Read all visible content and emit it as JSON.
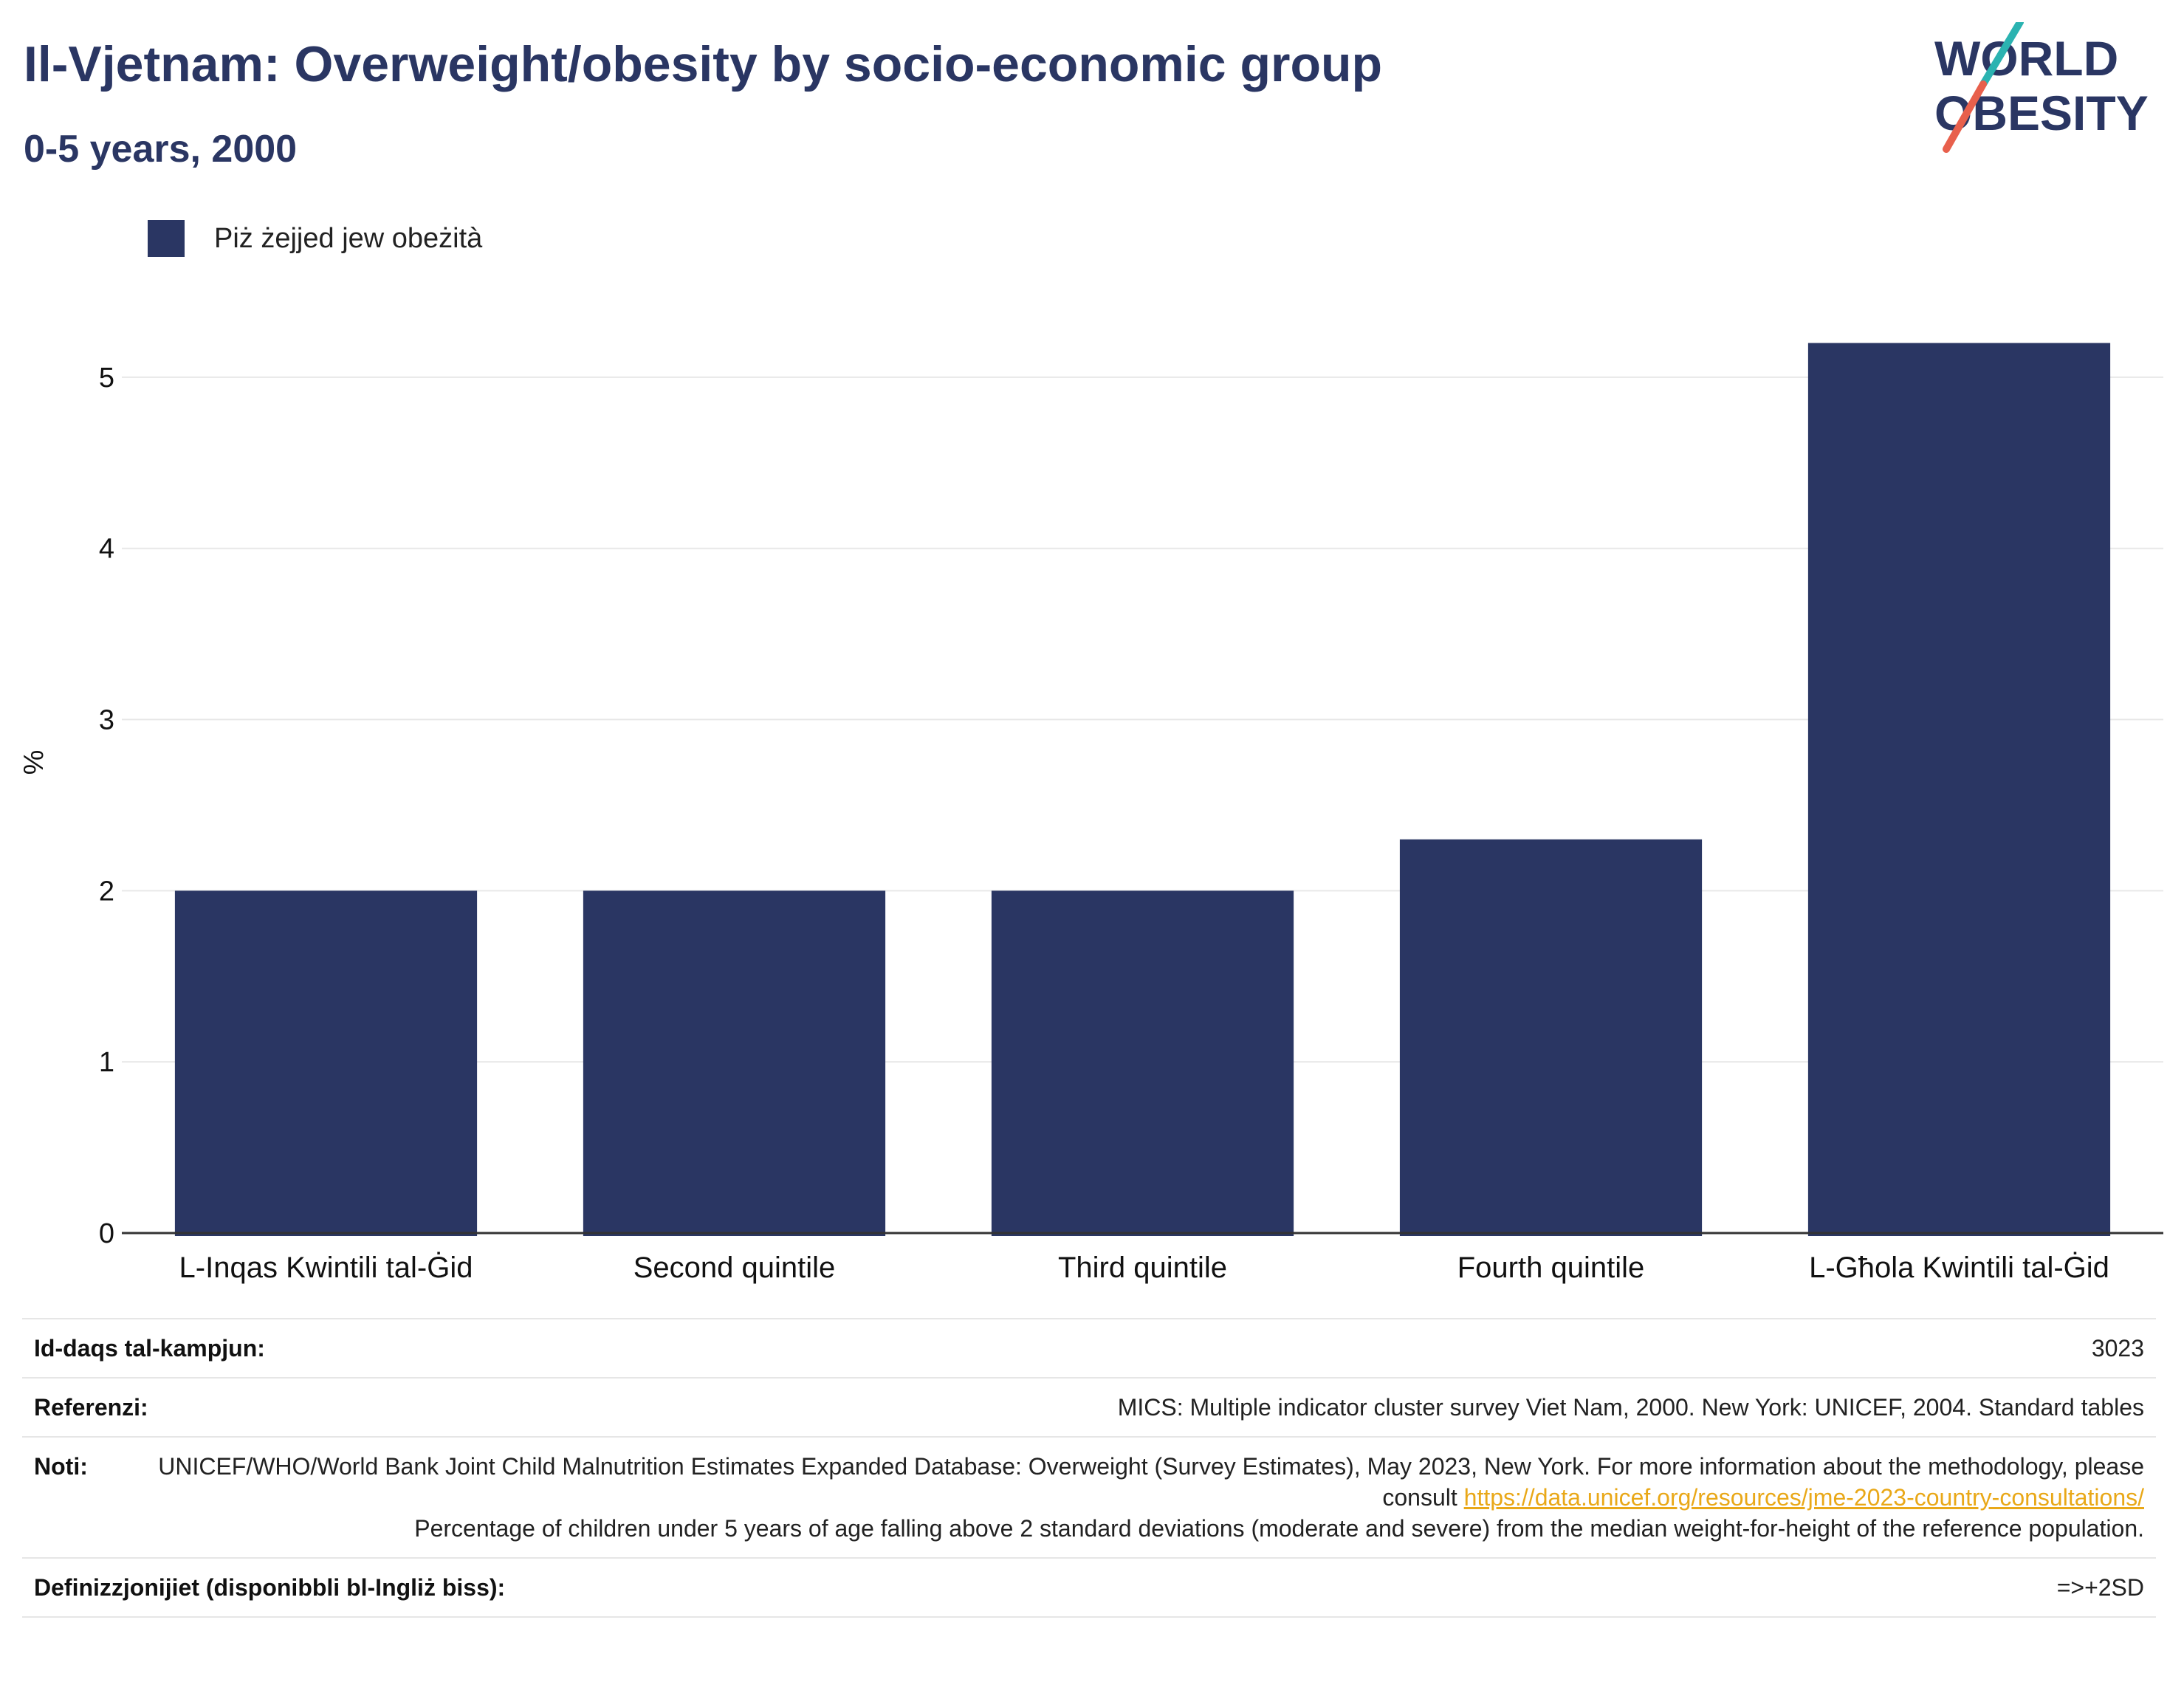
{
  "header": {
    "title": "Il-Vjetnam: Overweight/obesity by socio-economic group",
    "subtitle": "0-5 years, 2000"
  },
  "logo": {
    "line1": "WORLD",
    "line2": "OBESITY"
  },
  "legend": {
    "label": "Piż żejjed jew obeżità",
    "color": "#2a3663"
  },
  "chart_data": {
    "type": "bar",
    "categories": [
      "L-Inqas Kwintili tal-Ġid",
      "Second quintile",
      "Third quintile",
      "Fourth quintile",
      "L-Għola Kwintili tal-Ġid"
    ],
    "series": [
      {
        "name": "Piż żejjed jew obeżità",
        "values": [
          2.0,
          2.0,
          2.0,
          2.3,
          5.2
        ]
      }
    ],
    "ylabel": "%",
    "ylim": [
      0,
      5.5
    ],
    "yticks": [
      0,
      1,
      2,
      3,
      4,
      5
    ],
    "grid": true,
    "legend_position": "top-left",
    "bar_color": "#2a3663"
  },
  "info": {
    "sample_size": {
      "key": "Id-daqs tal-kampjun:",
      "value": "3023"
    },
    "references": {
      "key": "Referenzi:",
      "value": "MICS: Multiple indicator cluster survey Viet Nam, 2000. New York: UNICEF, 2004. Standard tables"
    },
    "notes": {
      "key": "Noti:",
      "text1": "UNICEF/WHO/World Bank Joint Child Malnutrition Estimates Expanded Database: Overweight (Survey Estimates), May 2023, New York. For more information about the methodology, please consult",
      "link": "https://data.unicef.org/resources/jme-2023-country-consultations/",
      "text2": "Percentage of children under 5 years of age falling above 2 standard deviations (moderate and severe) from the median weight-for-height of the reference population."
    },
    "definitions": {
      "key": "Definizzjonijiet (disponibbli bl-Ingliż biss):",
      "value": "=>+2SD"
    }
  }
}
